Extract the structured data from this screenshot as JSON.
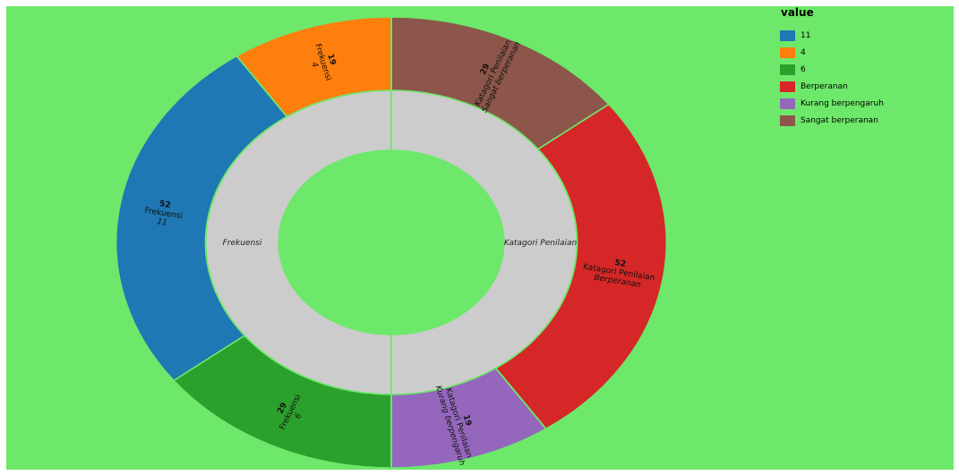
{
  "chart_data": {
    "type": "sunburst",
    "legend": {
      "title": "value",
      "placement": "top-right",
      "entries": [
        {
          "label": "11",
          "color": "#1f77b4"
        },
        {
          "label": "4",
          "color": "#ff7f0e"
        },
        {
          "label": "6",
          "color": "#2ca02c"
        },
        {
          "label": "Berperanan",
          "color": "#d62728"
        },
        {
          "label": "Kurang berpengaruh",
          "color": "#9467bd"
        },
        {
          "label": "Sangat berperanan",
          "color": "#8c564b"
        }
      ]
    },
    "inner_ring": [
      {
        "label": "Frekuensi",
        "value": 100,
        "color": "#cccccc"
      },
      {
        "label": "Katagori Penilaian",
        "value": 100,
        "color": "#cccccc"
      }
    ],
    "outer_ring": [
      {
        "parent": "Frekuensi",
        "parent_label": "Frekuensi",
        "category": "4",
        "value": 19,
        "color": "#ff7f0e"
      },
      {
        "parent": "Frekuensi",
        "parent_label": "Frekuensi",
        "category": "11",
        "value": 52,
        "color": "#1f77b4"
      },
      {
        "parent": "Frekuensi",
        "parent_label": "Frekuensi",
        "category": "6",
        "value": 29,
        "color": "#2ca02c"
      },
      {
        "parent": "Katagori Penilaian",
        "parent_label": "Katagori Penilaian",
        "category": "Sangat berperanan",
        "value": 29,
        "color": "#8c564b"
      },
      {
        "parent": "Katagori Penilaian",
        "parent_label": "Katagori Penilaian",
        "category": "Berperanan",
        "value": 52,
        "color": "#d62728"
      },
      {
        "parent": "Katagori Penilaian",
        "parent_label": "Katagori Penilaian",
        "category": "Kurang berpengaruh",
        "value": 19,
        "color": "#9467bd"
      }
    ],
    "background_color": "#6de86a"
  }
}
